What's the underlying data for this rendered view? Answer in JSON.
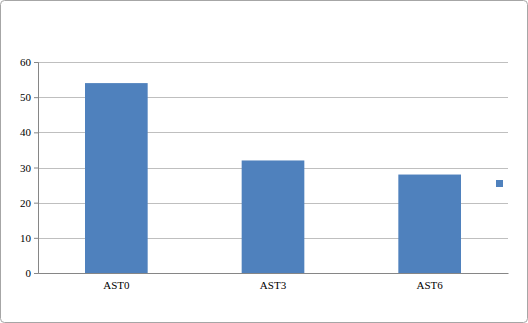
{
  "chart_data": {
    "type": "bar",
    "categories": [
      "AST0",
      "AST3",
      "AST6"
    ],
    "values": [
      54,
      32,
      28
    ],
    "color": "#4f81bd",
    "ylim": [
      0,
      60
    ],
    "yticks": [
      0,
      10,
      20,
      30,
      40,
      50,
      60
    ],
    "grid": true,
    "legend": "right"
  }
}
